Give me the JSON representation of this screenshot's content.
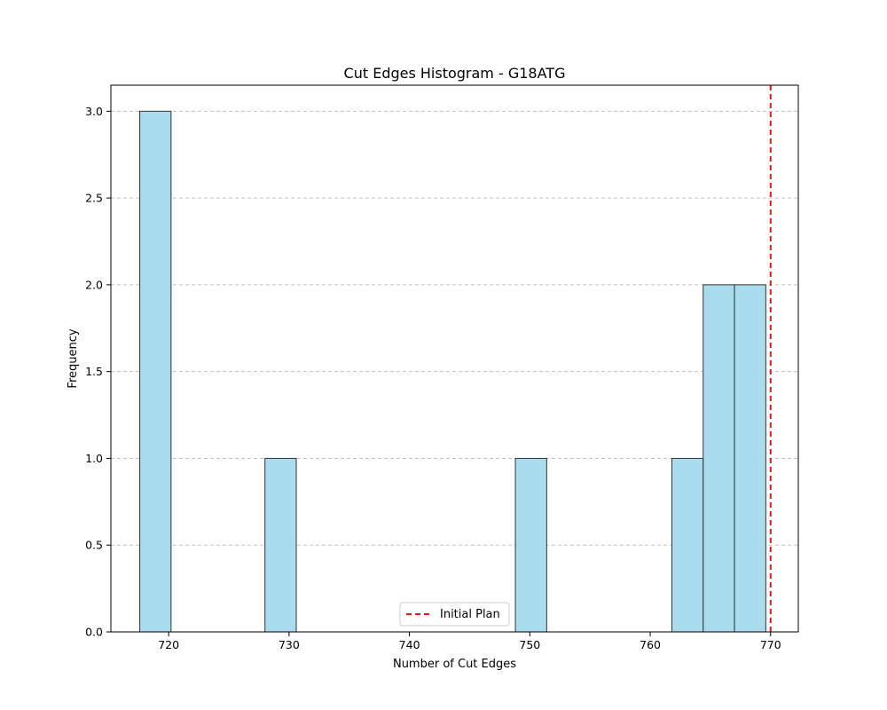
{
  "chart_data": {
    "type": "bar",
    "title": "Cut Edges Histogram - G18ATG",
    "xlabel": "Number of Cut Edges",
    "ylabel": "Frequency",
    "xlim": [
      715.2,
      772.3
    ],
    "ylim": [
      0,
      3.15
    ],
    "xticks": [
      720,
      730,
      740,
      750,
      760,
      770
    ],
    "yticks": [
      0.0,
      0.5,
      1.0,
      1.5,
      2.0,
      2.5,
      3.0
    ],
    "xtick_labels": [
      "720",
      "730",
      "740",
      "750",
      "760",
      "770"
    ],
    "ytick_labels": [
      "0.0",
      "0.5",
      "1.0",
      "1.5",
      "2.0",
      "2.5",
      "3.0"
    ],
    "grid": "y-dashed",
    "bins": [
      {
        "x0": 717.6,
        "x1": 720.2,
        "count": 3
      },
      {
        "x0": 728.0,
        "x1": 730.6,
        "count": 1
      },
      {
        "x0": 748.8,
        "x1": 751.4,
        "count": 1
      },
      {
        "x0": 761.8,
        "x1": 764.4,
        "count": 1
      },
      {
        "x0": 764.4,
        "x1": 767.0,
        "count": 2
      },
      {
        "x0": 767.0,
        "x1": 769.6,
        "count": 2
      }
    ],
    "bar_color": "#a9dcee",
    "edge_color": "#333333",
    "reference_line": {
      "x": 770,
      "label": "Initial Plan",
      "color": "#e31a1c",
      "style": "dashed"
    },
    "legend": {
      "placement": "bottom-center",
      "entries": [
        "Initial Plan"
      ]
    }
  }
}
